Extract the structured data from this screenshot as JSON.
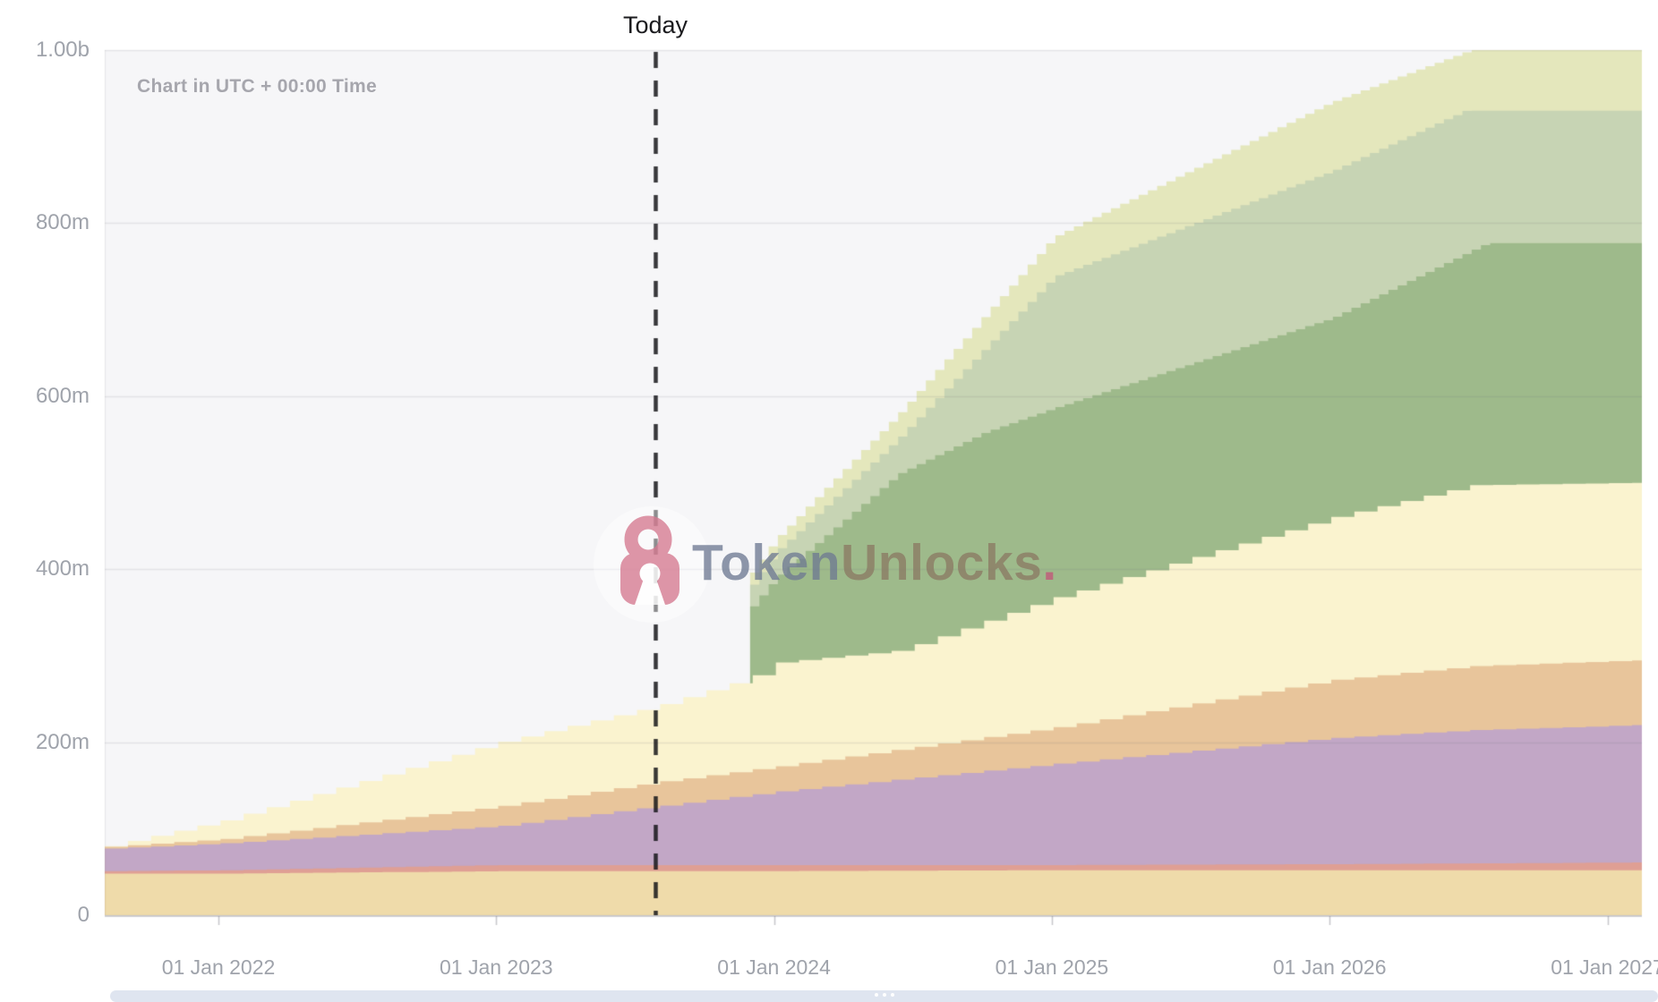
{
  "header": {
    "today_label": "Today",
    "timezone_note": "Chart in UTC + 00:00 Time"
  },
  "watermark": {
    "brand_first": "Token",
    "brand_second": "Unlocks",
    "brand_dot": ".",
    "lock_icon": "open-padlock"
  },
  "y_axis": {
    "tick_labels": [
      "1.00b",
      "800m",
      "600m",
      "400m",
      "200m",
      "0"
    ],
    "tick_values_millions": [
      1000,
      800,
      600,
      400,
      200,
      0
    ]
  },
  "x_axis": {
    "tick_labels": [
      "01 Jan 2022",
      "01 Jan 2023",
      "01 Jan 2024",
      "01 Jan 2025",
      "01 Jan 2026",
      "01 Jan 2027"
    ],
    "tick_years": [
      2022,
      2023,
      2024,
      2025,
      2026,
      2027
    ]
  },
  "colors": {
    "plot_background": "#f6f6f8",
    "gridline": "rgba(115,115,130,0.14)",
    "axis_line": "rgba(98,98,110,0.35)",
    "axis_label": "#9fa3ab",
    "today_line": "rgba(22,22,26,0.85)",
    "scrollbar": "#dfe5f0",
    "watermark_lock": "#d4798f"
  },
  "scrollbar": {
    "grip_dots": 3
  },
  "chart_data": {
    "type": "area",
    "stacked": true,
    "stepped": true,
    "x_unit": "decimal_year",
    "x_plot_range": [
      2021.591,
      2027.125
    ],
    "ylim_millions": [
      0,
      1000
    ],
    "grid": true,
    "legend": "none",
    "today_x": 2023.572,
    "annotations": [
      {
        "text": "Today",
        "x": 2023.572
      },
      {
        "text": "Chart in UTC + 00:00 Time",
        "position": "top-left"
      }
    ],
    "series_note": "values are cumulative stack tops in millions of tokens, bottom band first; green bands begin abruptly at 2023.914 (cliff unlock)",
    "series": [
      {
        "name": "band-wheat-base",
        "color": "#efdbaa",
        "step_years": 0.0833,
        "points": [
          [
            2021.591,
            48
          ],
          [
            2022,
            48
          ],
          [
            2023,
            51
          ],
          [
            2024,
            51
          ],
          [
            2025,
            52
          ],
          [
            2027.125,
            52
          ]
        ]
      },
      {
        "name": "band-salmon-thin",
        "color": "#df9f94",
        "step_years": 0.0833,
        "points": [
          [
            2021.591,
            51
          ],
          [
            2022,
            52
          ],
          [
            2023,
            58
          ],
          [
            2025,
            58
          ],
          [
            2026,
            59
          ],
          [
            2027.125,
            61
          ]
        ]
      },
      {
        "name": "band-mauve",
        "color": "#c2a7c6",
        "step_years": 0.0833,
        "points": [
          [
            2021.591,
            77
          ],
          [
            2022,
            83
          ],
          [
            2023,
            103
          ],
          [
            2023.57,
            126
          ],
          [
            2024,
            143
          ],
          [
            2025,
            175
          ],
          [
            2026,
            205
          ],
          [
            2026.5,
            214
          ],
          [
            2027.125,
            220
          ]
        ]
      },
      {
        "name": "band-orange",
        "color": "#e8c59b",
        "step_years": 0.0833,
        "points": [
          [
            2021.591,
            79
          ],
          [
            2022,
            88
          ],
          [
            2023,
            126
          ],
          [
            2023.57,
            154
          ],
          [
            2024,
            172
          ],
          [
            2025,
            217
          ],
          [
            2026,
            272
          ],
          [
            2026.5,
            288
          ],
          [
            2027.125,
            295
          ]
        ]
      },
      {
        "name": "band-pale-yellow",
        "color": "#faf3cf",
        "step_years": 0.0833,
        "points": [
          [
            2021.591,
            80
          ],
          [
            2022,
            109
          ],
          [
            2023,
            200
          ],
          [
            2023.57,
            242
          ],
          [
            2023.91,
            275
          ],
          [
            2024,
            292
          ],
          [
            2024.44,
            306
          ],
          [
            2025,
            367
          ],
          [
            2026,
            460
          ],
          [
            2026.5,
            497
          ],
          [
            2027.125,
            500
          ]
        ]
      },
      {
        "name": "band-green-dark",
        "color": "#9eba8b",
        "step_years": 0.0333,
        "start": 2023.914,
        "points": [
          [
            2023.914,
            357
          ],
          [
            2024,
            390
          ],
          [
            2024.44,
            510
          ],
          [
            2024.75,
            558
          ],
          [
            2025,
            586
          ],
          [
            2026,
            690
          ],
          [
            2026.56,
            777
          ],
          [
            2027.125,
            777
          ]
        ]
      },
      {
        "name": "band-green-light",
        "color": "#c7d4b4",
        "step_years": 0.0333,
        "start": 2023.914,
        "points": [
          [
            2023.914,
            382
          ],
          [
            2024,
            420
          ],
          [
            2024.44,
            551
          ],
          [
            2025,
            738
          ],
          [
            2026,
            860
          ],
          [
            2026.48,
            930
          ],
          [
            2027.125,
            930
          ]
        ]
      },
      {
        "name": "band-olive-top",
        "color": "#e4e7bc",
        "step_years": 0.0333,
        "start": 2023.914,
        "points": [
          [
            2023.914,
            396
          ],
          [
            2024,
            435
          ],
          [
            2024.44,
            579
          ],
          [
            2025,
            784
          ],
          [
            2026,
            940
          ],
          [
            2026.5,
            1000
          ],
          [
            2027.125,
            1000
          ]
        ]
      }
    ]
  }
}
